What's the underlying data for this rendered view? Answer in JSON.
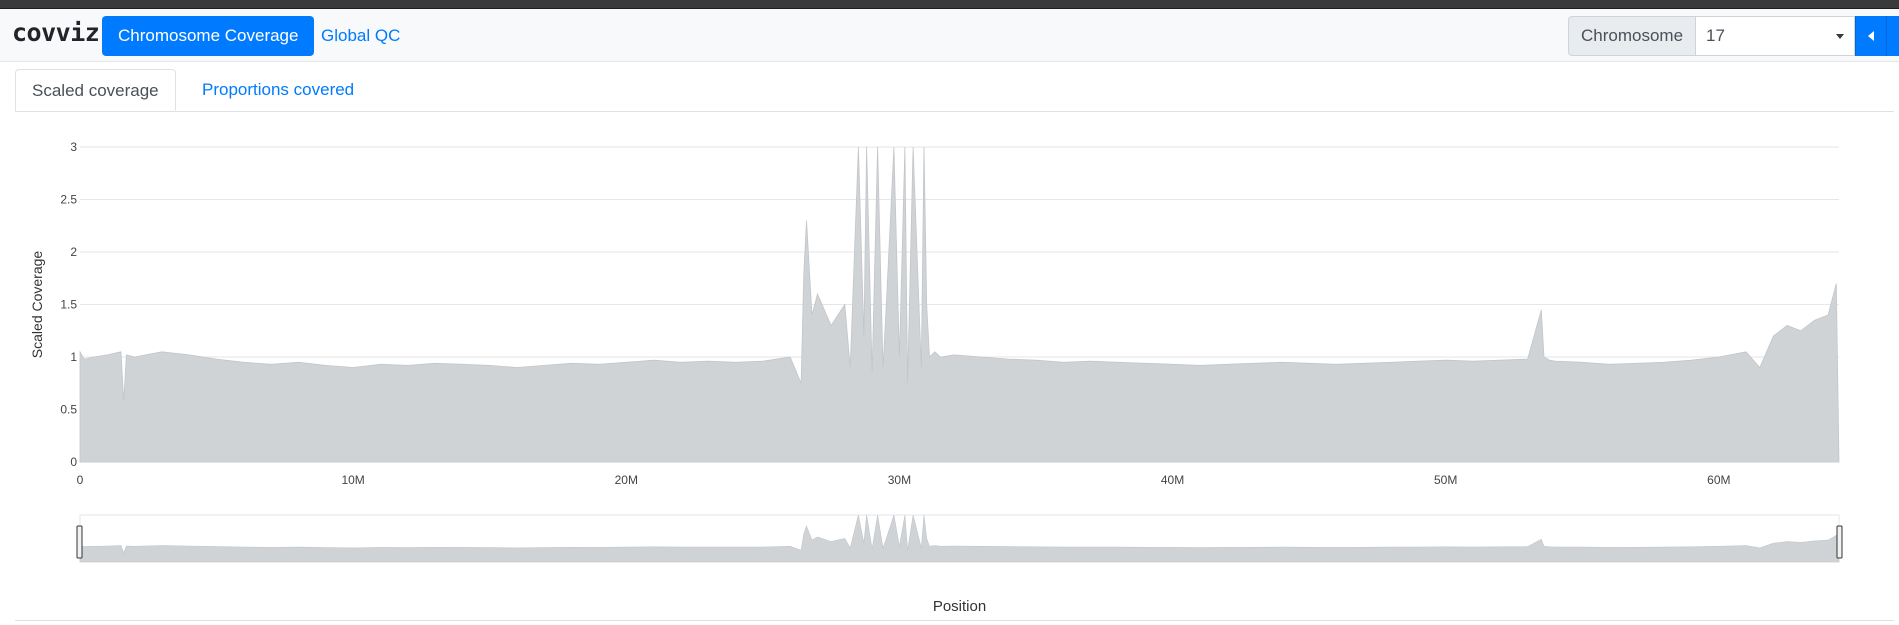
{
  "app": {
    "brand": "covviz",
    "nav": [
      {
        "label": "Chromosome Coverage",
        "active": true
      },
      {
        "label": "Global QC",
        "active": false
      }
    ],
    "chromosome_label": "Chromosome",
    "chromosome_value": "17"
  },
  "tabs": [
    {
      "label": "Scaled coverage",
      "active": true
    },
    {
      "label": "Proportions covered",
      "active": false
    }
  ],
  "colors": {
    "primary": "#007bff",
    "fill": "#d0d3d6",
    "grid": "#e6e6e6"
  },
  "chart_data": {
    "type": "area",
    "title": "",
    "xlabel": "Position",
    "ylabel": "Scaled Coverage",
    "xlim": [
      0,
      64400000
    ],
    "ylim": [
      0,
      3
    ],
    "x_ticks": [
      0,
      10000000,
      20000000,
      30000000,
      40000000,
      50000000,
      60000000
    ],
    "x_tick_labels": [
      "0",
      "10M",
      "20M",
      "30M",
      "40M",
      "50M",
      "60M"
    ],
    "y_ticks": [
      0,
      0.5,
      1,
      1.5,
      2,
      2.5,
      3
    ],
    "y_tick_labels": [
      "0",
      "0.5",
      "1",
      "1.5",
      "2",
      "2.5",
      "3"
    ],
    "grid": true,
    "rangeslider": true,
    "series": [
      {
        "x": [
          0,
          150000,
          500000,
          1000000,
          1500000,
          1600000,
          1700000,
          2000000,
          3000000,
          4000000,
          5000000,
          6000000,
          7000000,
          8000000,
          9000000,
          10000000,
          11000000,
          12000000,
          13000000,
          14000000,
          15000000,
          16000000,
          17000000,
          18000000,
          19000000,
          20000000,
          21000000,
          22000000,
          23000000,
          24000000,
          25000000,
          26000000,
          26400000,
          26500000,
          26600000,
          26800000,
          27000000,
          27500000,
          28000000,
          28200000,
          28500000,
          28700000,
          28800000,
          29000000,
          29200000,
          29400000,
          29500000,
          29800000,
          30000000,
          30200000,
          30300000,
          30500000,
          30800000,
          30900000,
          31000000,
          31100000,
          31300000,
          31500000,
          32000000,
          33000000,
          34000000,
          35000000,
          36000000,
          37000000,
          38000000,
          39000000,
          40000000,
          41000000,
          42000000,
          43000000,
          44000000,
          45000000,
          46000000,
          47000000,
          48000000,
          49000000,
          50000000,
          51000000,
          52000000,
          53000000,
          53500000,
          53600000,
          53800000,
          54000000,
          55000000,
          56000000,
          57000000,
          58000000,
          59000000,
          60000000,
          61000000,
          61500000,
          62000000,
          62500000,
          63000000,
          63500000,
          64000000,
          64300000,
          64400000
        ],
        "y": [
          1.05,
          0.98,
          1.0,
          1.02,
          1.05,
          0.58,
          1.02,
          1.0,
          1.05,
          1.02,
          0.98,
          0.95,
          0.93,
          0.95,
          0.92,
          0.9,
          0.93,
          0.92,
          0.94,
          0.93,
          0.92,
          0.9,
          0.92,
          0.94,
          0.93,
          0.95,
          0.97,
          0.95,
          0.96,
          0.95,
          0.96,
          1.0,
          0.75,
          1.8,
          2.3,
          1.4,
          1.6,
          1.3,
          1.5,
          0.9,
          3.0,
          1.2,
          3.0,
          0.85,
          3.0,
          0.9,
          1.4,
          3.0,
          1.0,
          3.0,
          0.75,
          3.0,
          0.9,
          3.0,
          1.5,
          1.0,
          1.05,
          1.0,
          1.02,
          1.0,
          0.98,
          0.97,
          0.95,
          0.96,
          0.95,
          0.94,
          0.93,
          0.92,
          0.93,
          0.94,
          0.95,
          0.94,
          0.93,
          0.94,
          0.95,
          0.96,
          0.97,
          0.96,
          0.97,
          0.98,
          1.45,
          1.0,
          0.97,
          0.96,
          0.95,
          0.93,
          0.94,
          0.95,
          0.97,
          1.0,
          1.05,
          0.9,
          1.2,
          1.3,
          1.25,
          1.35,
          1.4,
          1.7,
          0.0
        ]
      }
    ]
  }
}
